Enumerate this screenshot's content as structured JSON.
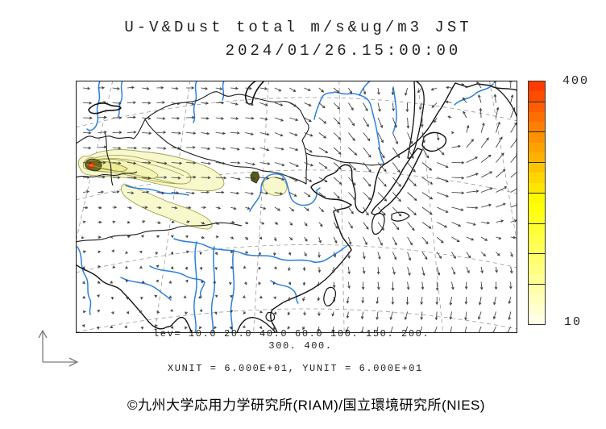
{
  "title": {
    "line1": "U-V&Dust total m/s&ug/m3 JST",
    "line2": "2024/01/26.15:00:00"
  },
  "legend": {
    "lev_line1": "lev= 10.0 20.0 40.0 60.0 100. 150. 200.",
    "lev_line2": "300. 400.",
    "units": "XUNIT = 6.000E+01, YUNIT = 6.000E+01"
  },
  "colorbar": {
    "max_label": "400",
    "min_label": "10",
    "levels": [
      10,
      20,
      40,
      60,
      100,
      150,
      200,
      300,
      400
    ],
    "colors_bottom_to_top": [
      "#FFFFE5",
      "#FFFFD1",
      "#FFFFBD",
      "#FFFFA8",
      "#FFFF94",
      "#FFFF81",
      "#FFFF6E",
      "#FFFF5A",
      "#FFFF46",
      "#FFFF32",
      "#FFFF1E",
      "#FFFF0A",
      "#FFF900",
      "#FFE600",
      "#FFD500",
      "#FFC400",
      "#FFB300",
      "#FFA200",
      "#FF9100",
      "#FF8000",
      "#FF6F00",
      "#FF5E00",
      "#FF4D00",
      "#FF3C00"
    ]
  },
  "footer": {
    "copyright": "©九州大学応用力学研究所(RIAM)/国立環境研究所(NIES)"
  },
  "chart_data": {
    "type": "map",
    "subtype": "wind-vector and dust-concentration forecast",
    "region": "East Asia",
    "valid_time": "2024/01/26 15:00:00 JST",
    "variables": [
      "U-V wind (m/s)",
      "Dust total (ug/m3)"
    ],
    "contour_levels_ug_m3": [
      10.0,
      20.0,
      40.0,
      60.0,
      100.0,
      150.0,
      200.0,
      300.0,
      400.0
    ],
    "colorbar_range": [
      10,
      400
    ],
    "vector_scale": {
      "xunit": "6.000E+01",
      "yunit": "6.000E+01"
    },
    "depicted_features": [
      {
        "label": "primary dust plume",
        "location": "northwest (Central Asia / Xinjiang), elongated east-southeast with red maximum core"
      },
      {
        "label": "secondary dust spot",
        "location": "north-central China with small pale patch downstream"
      },
      {
        "label": "cyclonic wind vortex",
        "location": "east of Sakhalin / Sea of Okhotsk"
      },
      {
        "label": "strong northerly monsoon flow",
        "location": "western Pacific south of Japan"
      }
    ],
    "map_layers": [
      "coastlines-black",
      "borders-black",
      "rivers-blue",
      "graticule-gray-dashed",
      "wind-arrows",
      "dust-shading-yellow"
    ]
  }
}
